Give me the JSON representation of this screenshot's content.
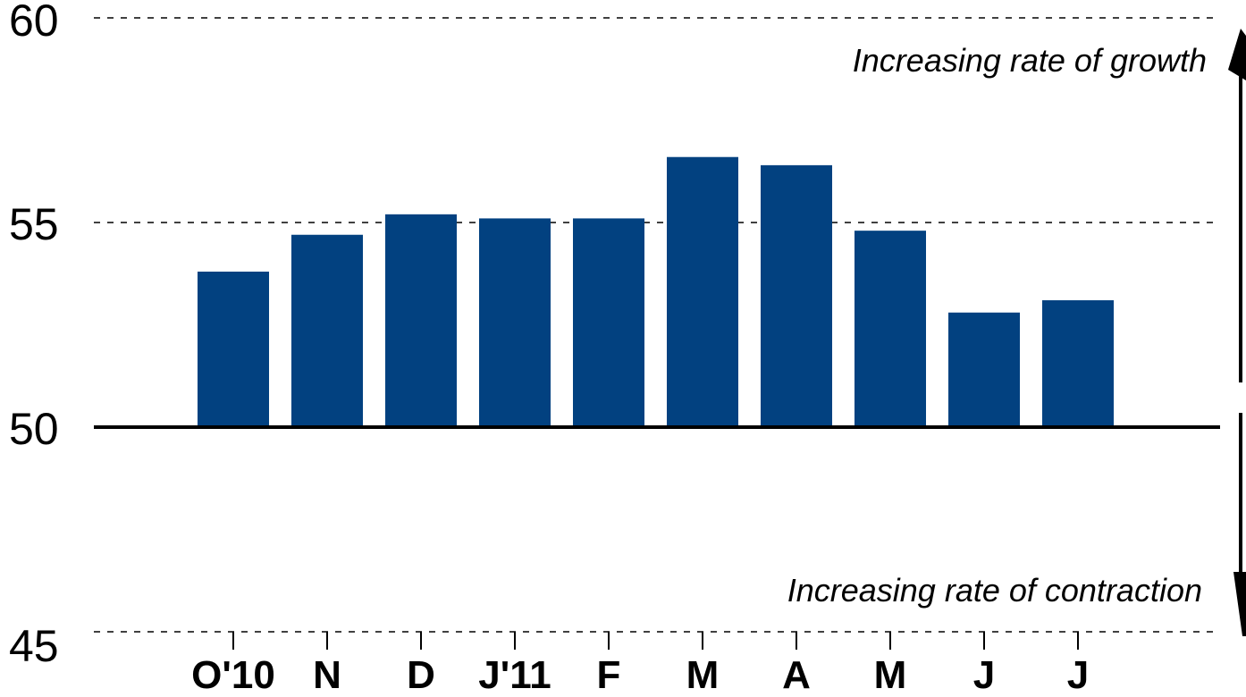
{
  "chart_data": {
    "type": "bar",
    "title": "",
    "xlabel": "",
    "ylabel": "",
    "categories": [
      "O'10",
      "N",
      "D",
      "J'11",
      "F",
      "M",
      "A",
      "M",
      "J",
      "J"
    ],
    "values": [
      53.8,
      54.7,
      55.2,
      55.1,
      55.1,
      56.6,
      56.4,
      54.8,
      52.8,
      53.1
    ],
    "ylim": [
      45,
      60
    ],
    "yticks": [
      "45",
      "50",
      "55",
      "60"
    ],
    "baseline": 50,
    "bar_color": "#024180",
    "grid": "dashed horizontal at 55 and 60",
    "legend": "none",
    "annotations": {
      "growth": "Increasing rate of growth",
      "contraction": "Increasing rate of contraction"
    }
  }
}
